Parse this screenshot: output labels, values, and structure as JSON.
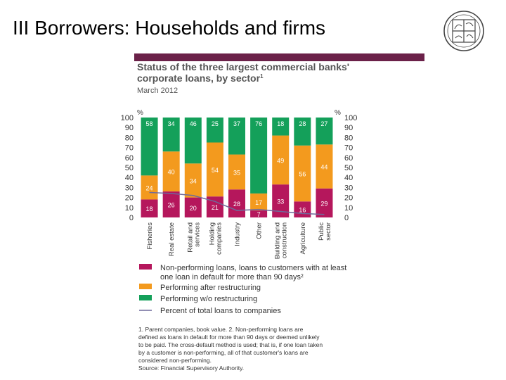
{
  "slide": {
    "title": "III Borrowers: Households and firms"
  },
  "colors": {
    "npl": "#b5175c",
    "restructured": "#f39a1e",
    "performing": "#14a05a",
    "line": "#6f6a9b",
    "rule": "#6b2149"
  },
  "chart_data": {
    "type": "bar",
    "stacked": true,
    "title": "Status of the three largest commercial banks' corporate loans, by sector¹",
    "subtitle": "March 2012",
    "ylabel_left": "%",
    "ylabel_right": "%",
    "ylim": [
      0,
      100
    ],
    "yticks": [
      0,
      10,
      20,
      30,
      40,
      50,
      60,
      70,
      80,
      90,
      100
    ],
    "categories": [
      [
        "Fisheries"
      ],
      [
        "Real estate"
      ],
      [
        "Retail and",
        "services"
      ],
      [
        "Holding",
        "companies"
      ],
      [
        "Industry"
      ],
      [
        "Other"
      ],
      [
        "Building and",
        "construction"
      ],
      [
        "Agriculture"
      ],
      [
        "Public",
        "sector"
      ]
    ],
    "series": [
      {
        "name": "Non-performing loans, loans to customers with at least one loan in default for more than 90 days²",
        "key": "npl",
        "values": [
          18,
          26,
          20,
          21,
          28,
          7,
          33,
          16,
          29
        ]
      },
      {
        "name": "Performing after restructuring",
        "key": "restructured",
        "values": [
          24,
          40,
          34,
          54,
          35,
          17,
          49,
          56,
          44
        ]
      },
      {
        "name": "Performing w/o restructuring",
        "key": "performing",
        "values": [
          58,
          34,
          46,
          25,
          37,
          76,
          18,
          28,
          27
        ]
      }
    ],
    "line_series": {
      "name": "Percent of total loans to companies",
      "values": [
        25,
        24,
        22,
        16,
        7,
        8,
        6,
        4,
        3
      ]
    },
    "legend": {
      "position": "bottom",
      "entries": [
        [
          "Non-performing loans, loans to customers with at least",
          "one loan in default for more than 90 days²"
        ],
        [
          "Performing after restructuring"
        ],
        [
          "Performing w/o restructuring"
        ],
        [
          "Percent of total loans to companies"
        ]
      ]
    },
    "footnote": [
      "1. Parent companies, book value. 2. Non-performing loans are",
      "defined as loans in default for more than 90 days or deemed unlikely",
      "to be paid. The cross-default method is used; that is, if one loan taken",
      "by a customer is non-performing, all of that customer's loans are",
      "considered non-performing."
    ],
    "source": "Source: Financial Supervisory Authority."
  }
}
